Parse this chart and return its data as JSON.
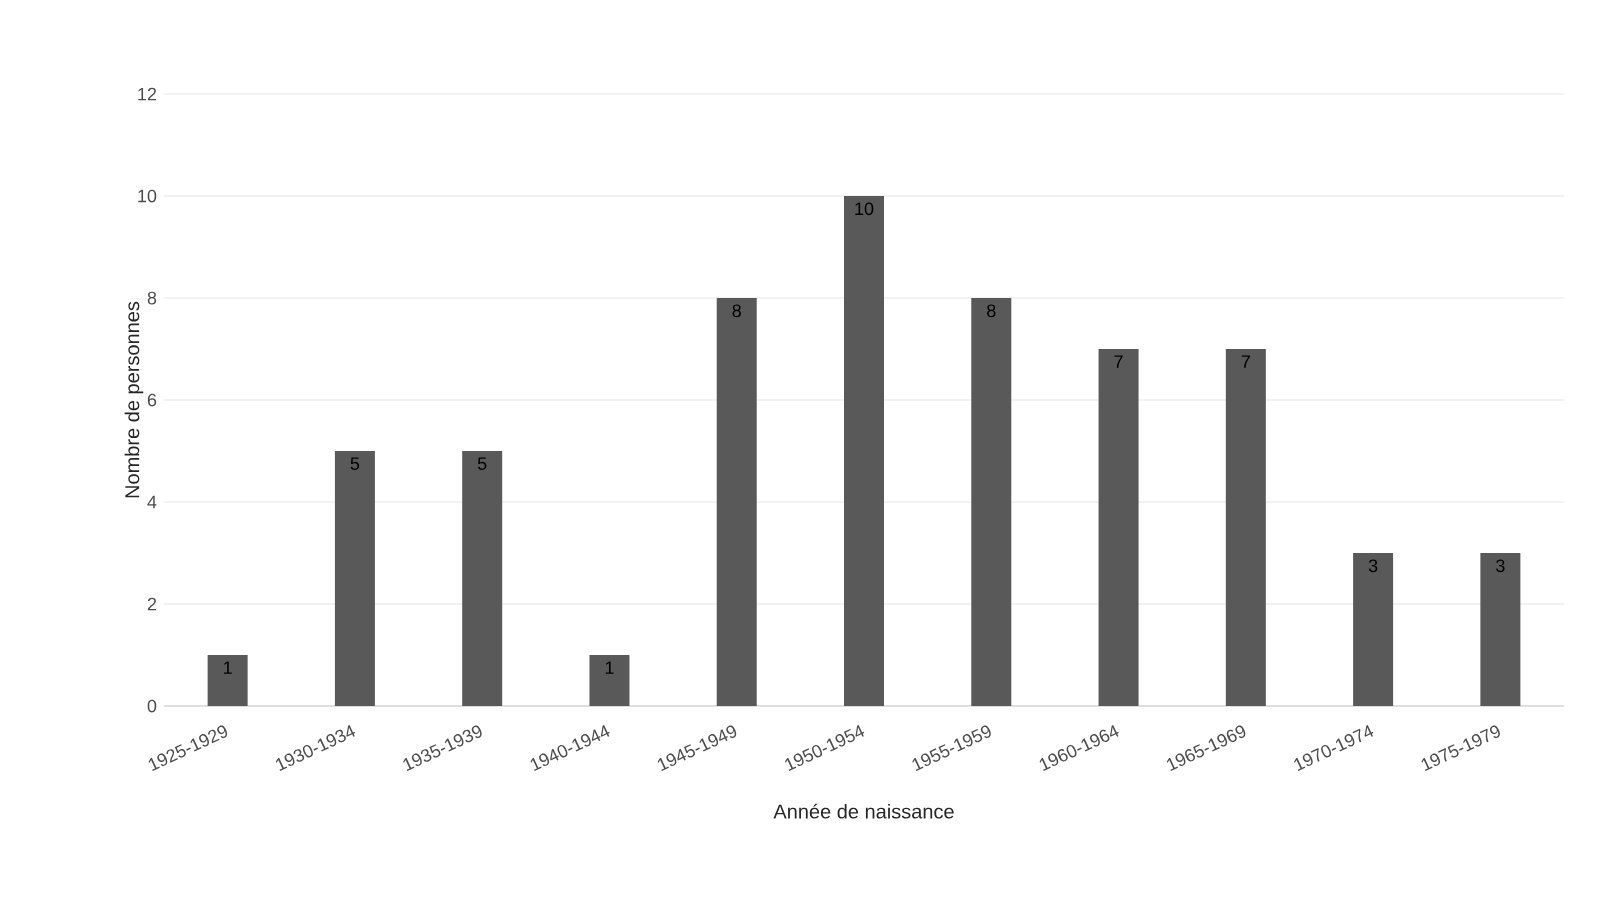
{
  "chart_data": {
    "type": "bar",
    "xlabel": "Année de naissance",
    "ylabel": "Nombre de personnes",
    "categories": [
      "1925-1929",
      "1930-1934",
      "1935-1939",
      "1940-1944",
      "1945-1949",
      "1950-1954",
      "1955-1959",
      "1960-1964",
      "1965-1969",
      "1970-1974",
      "1975-1979"
    ],
    "values": [
      1,
      5,
      5,
      1,
      8,
      10,
      8,
      7,
      7,
      3,
      3
    ],
    "color": "#595959",
    "ylim": [
      0,
      12
    ],
    "yticks": [
      0,
      2,
      4,
      6,
      8,
      10,
      12
    ],
    "grid": "y",
    "data_labels": true
  }
}
